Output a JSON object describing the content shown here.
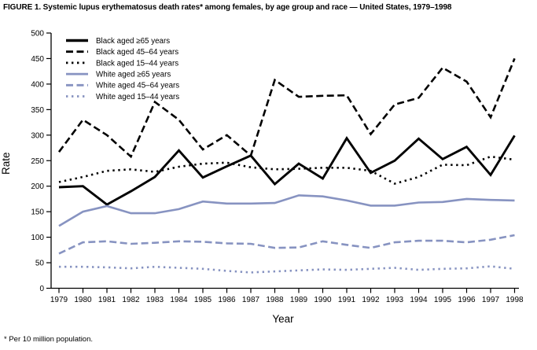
{
  "chart_data": {
    "type": "line",
    "title": "FIGURE 1. Systemic lupus erythematosus death rates* among females, by age group and race — United States, 1979–1998",
    "footnote": "* Per 10 million population.",
    "xlabel": "Year",
    "ylabel": "Rate",
    "ylim": [
      0,
      500
    ],
    "ytick_step": 50,
    "grid": false,
    "legend_position": "top-left",
    "colors": {
      "black_series": "#000000",
      "white_series": "#8793c1"
    },
    "x": [
      1979,
      1980,
      1981,
      1982,
      1983,
      1984,
      1985,
      1986,
      1987,
      1988,
      1989,
      1990,
      1991,
      1992,
      1993,
      1994,
      1995,
      1996,
      1997,
      1998
    ],
    "series": [
      {
        "name": "Black aged ≥65 years",
        "color": "#000000",
        "style": "solid",
        "values": [
          198,
          200,
          164,
          190,
          218,
          270,
          217,
          239,
          260,
          204,
          244,
          215,
          294,
          226,
          250,
          293,
          253,
          277,
          222,
          299
        ]
      },
      {
        "name": "Black aged 45–64 years",
        "color": "#000000",
        "style": "dashed",
        "values": [
          267,
          330,
          300,
          258,
          365,
          330,
          272,
          300,
          260,
          408,
          375,
          377,
          378,
          302,
          360,
          373,
          432,
          405,
          335,
          450
        ]
      },
      {
        "name": "Black aged 15–44 years",
        "color": "#000000",
        "style": "dotted",
        "values": [
          208,
          218,
          230,
          233,
          228,
          238,
          244,
          246,
          237,
          233,
          234,
          236,
          236,
          230,
          205,
          218,
          242,
          241,
          258,
          252
        ]
      },
      {
        "name": "White aged ≥65 years",
        "color": "#8793c1",
        "style": "solid",
        "values": [
          122,
          150,
          161,
          147,
          147,
          155,
          170,
          166,
          166,
          167,
          182,
          180,
          172,
          162,
          162,
          168,
          169,
          175,
          173,
          172
        ]
      },
      {
        "name": "White aged 45–64 years",
        "color": "#8793c1",
        "style": "dashed",
        "values": [
          68,
          90,
          92,
          87,
          89,
          92,
          91,
          88,
          87,
          79,
          80,
          92,
          85,
          79,
          90,
          93,
          93,
          90,
          95,
          104
        ]
      },
      {
        "name": "White aged 15–44 years",
        "color": "#8793c1",
        "style": "dotted",
        "values": [
          42,
          42,
          41,
          39,
          42,
          40,
          38,
          34,
          31,
          33,
          35,
          37,
          36,
          38,
          40,
          36,
          38,
          39,
          43,
          38
        ]
      }
    ]
  }
}
